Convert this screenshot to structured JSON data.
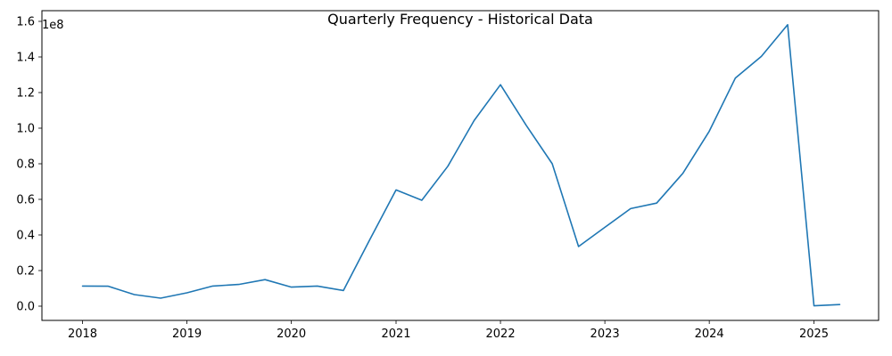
{
  "chart_data": {
    "type": "line",
    "title": "Quarterly Frequency - Historical Data",
    "xlabel": "",
    "ylabel": "",
    "y_offset_label": "1e8",
    "line_color": "#1f77b4",
    "grid": false,
    "legend": "none",
    "xlim": [
      "2017-08-12",
      "2025-08-15"
    ],
    "ylim": [
      -8000000,
      166000000
    ],
    "x_tick_labels": [
      "2018",
      "2019",
      "2020",
      "2021",
      "2022",
      "2023",
      "2024",
      "2025"
    ],
    "x_ticks": [
      "2018-01-01",
      "2019-01-01",
      "2020-01-01",
      "2021-01-01",
      "2022-01-01",
      "2023-01-01",
      "2024-01-01",
      "2025-01-01"
    ],
    "y_tick_labels": [
      "0.0",
      "0.2",
      "0.4",
      "0.6",
      "0.8",
      "1.0",
      "1.2",
      "1.4",
      "1.6"
    ],
    "y_ticks": [
      0,
      20000000,
      40000000,
      60000000,
      80000000,
      100000000,
      120000000,
      140000000,
      160000000
    ],
    "series": [
      {
        "x": [
          "2018-01-01",
          "2018-04-01",
          "2018-07-01",
          "2018-10-01",
          "2019-01-01",
          "2019-04-01",
          "2019-07-01",
          "2019-10-01",
          "2020-01-01",
          "2020-04-01",
          "2020-07-01",
          "2020-10-01",
          "2021-01-01",
          "2021-04-01",
          "2021-07-01",
          "2021-10-01",
          "2022-01-01",
          "2022-04-01",
          "2022-07-01",
          "2022-10-01",
          "2023-01-01",
          "2023-04-01",
          "2023-07-01",
          "2023-10-01",
          "2024-01-01",
          "2024-04-01",
          "2024-07-01",
          "2024-10-01",
          "2025-01-01",
          "2025-04-01"
        ],
        "values": [
          11300000,
          11200000,
          6500000,
          4500000,
          7500000,
          11300000,
          12200000,
          14900000,
          10700000,
          11300000,
          8800000,
          37300000,
          65300000,
          59500000,
          78600000,
          104300000,
          124400000,
          101600000,
          80000000,
          33500000,
          44300000,
          54800000,
          57900000,
          74700000,
          98300000,
          128100000,
          140300000,
          158100000,
          200000,
          900000
        ]
      }
    ]
  }
}
